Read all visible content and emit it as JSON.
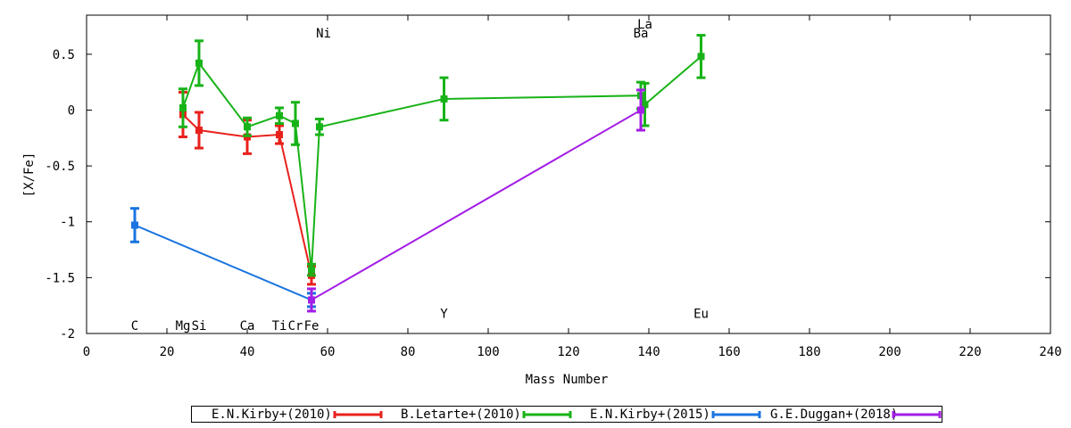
{
  "chart_data": {
    "type": "line",
    "xlabel": "Mass Number",
    "ylabel": "[X/Fe]",
    "xlim": [
      0,
      240
    ],
    "ylim": [
      -2,
      0.85
    ],
    "xticks": [
      0,
      20,
      40,
      60,
      80,
      100,
      120,
      140,
      160,
      180,
      200,
      220,
      240
    ],
    "yticks": [
      -2,
      -1.5,
      -1,
      -0.5,
      0,
      0.5
    ],
    "ytick_labels": [
      "-2",
      "-1.5",
      "-1",
      "-0.5",
      "0",
      "0.5"
    ],
    "grid": false,
    "legend_position": "bottom",
    "annotations": [
      {
        "text": "C",
        "x": 12,
        "y": -1.93
      },
      {
        "text": "Mg",
        "x": 24,
        "y": -1.93
      },
      {
        "text": "Si",
        "x": 28,
        "y": -1.93
      },
      {
        "text": "Ca",
        "x": 40,
        "y": -1.93
      },
      {
        "text": "Ti",
        "x": 48,
        "y": -1.93
      },
      {
        "text": "Cr",
        "x": 52,
        "y": -1.93
      },
      {
        "text": "Fe",
        "x": 56,
        "y": -1.93
      },
      {
        "text": "Ni",
        "x": 59,
        "y": 0.69
      },
      {
        "text": "Y",
        "x": 89,
        "y": -1.82
      },
      {
        "text": "Ba",
        "x": 138,
        "y": 0.69
      },
      {
        "text": "La",
        "x": 139,
        "y": 0.77
      },
      {
        "text": "Eu",
        "x": 153,
        "y": -1.82
      }
    ],
    "series": [
      {
        "name": "E.N.Kirby+(2010)",
        "color": "#e8211c",
        "x": [
          24,
          28,
          40,
          48,
          56
        ],
        "y": [
          -0.04,
          -0.18,
          -0.24,
          -0.22,
          -1.48
        ],
        "err": [
          0.2,
          0.16,
          0.15,
          0.08,
          0.08
        ]
      },
      {
        "name": "B.Letarte+(2010)",
        "color": "#18b318",
        "x": [
          24,
          28,
          40,
          48,
          52,
          56,
          58,
          89,
          138,
          139,
          153
        ],
        "y": [
          0.02,
          0.42,
          -0.15,
          -0.05,
          -0.12,
          -1.43,
          -0.15,
          0.1,
          0.13,
          0.05,
          0.48
        ],
        "err": [
          0.17,
          0.2,
          0.08,
          0.07,
          0.19,
          0.05,
          0.07,
          0.19,
          0.12,
          0.19,
          0.19
        ]
      },
      {
        "name": "E.N.Kirby+(2015)",
        "color": "#1a74e0",
        "x": [
          12,
          56
        ],
        "y": [
          -1.03,
          -1.7
        ],
        "err": [
          0.15,
          0.06
        ]
      },
      {
        "name": "G.E.Duggan+(2018)",
        "color": "#a31ee6",
        "x": [
          56,
          138
        ],
        "y": [
          -1.7,
          0.0
        ],
        "err": [
          0.1,
          0.18
        ]
      }
    ]
  }
}
